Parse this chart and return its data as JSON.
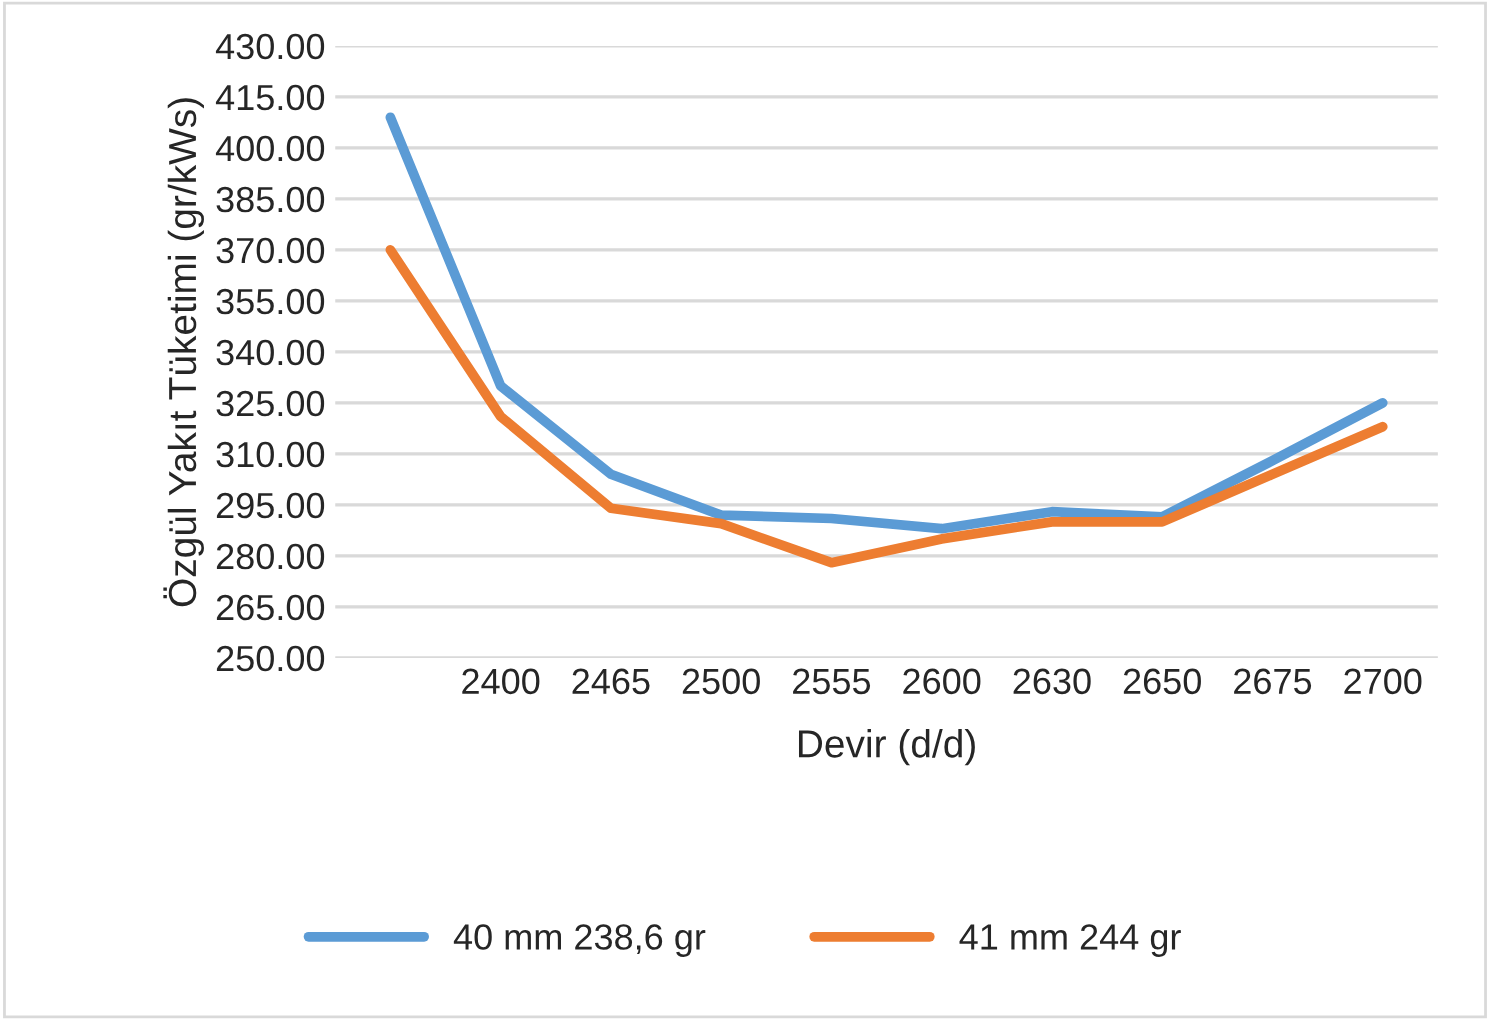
{
  "chart_data": {
    "type": "line",
    "xlabel": "Devir (d/d)",
    "ylabel": "Özgül Yakıt Tüketimi (gr/kWs)",
    "categories": [
      null,
      "2400",
      "2465",
      "2500",
      "2555",
      "2600",
      "2630",
      "2650",
      "2675",
      "2700"
    ],
    "series": [
      {
        "name": "40 mm 238,6 gr",
        "color": "#5b9bd5",
        "values": [
          409,
          330,
          304,
          292,
          291,
          288,
          293,
          291.5,
          308,
          325
        ]
      },
      {
        "name": "41 mm 244 gr",
        "color": "#ed7d31",
        "values": [
          370,
          321,
          294,
          289.5,
          278,
          285,
          290,
          290,
          304,
          318
        ]
      }
    ],
    "ylim": [
      250,
      430
    ],
    "yticks": [
      {
        "value": 250,
        "label": "250.00"
      },
      {
        "value": 265,
        "label": "265.00"
      },
      {
        "value": 280,
        "label": "280.00"
      },
      {
        "value": 295,
        "label": "295.00"
      },
      {
        "value": 310,
        "label": "310.00"
      },
      {
        "value": 325,
        "label": "325.00"
      },
      {
        "value": 340,
        "label": "340.00"
      },
      {
        "value": 355,
        "label": "355.00"
      },
      {
        "value": 370,
        "label": "370.00"
      },
      {
        "value": 385,
        "label": "385.00"
      },
      {
        "value": 400,
        "label": "400.00"
      },
      {
        "value": 415,
        "label": "415.00"
      },
      {
        "value": 430,
        "label": "430.00"
      }
    ],
    "grid": "y",
    "legend": "bottom",
    "marker": "none",
    "line_style": "solid"
  }
}
